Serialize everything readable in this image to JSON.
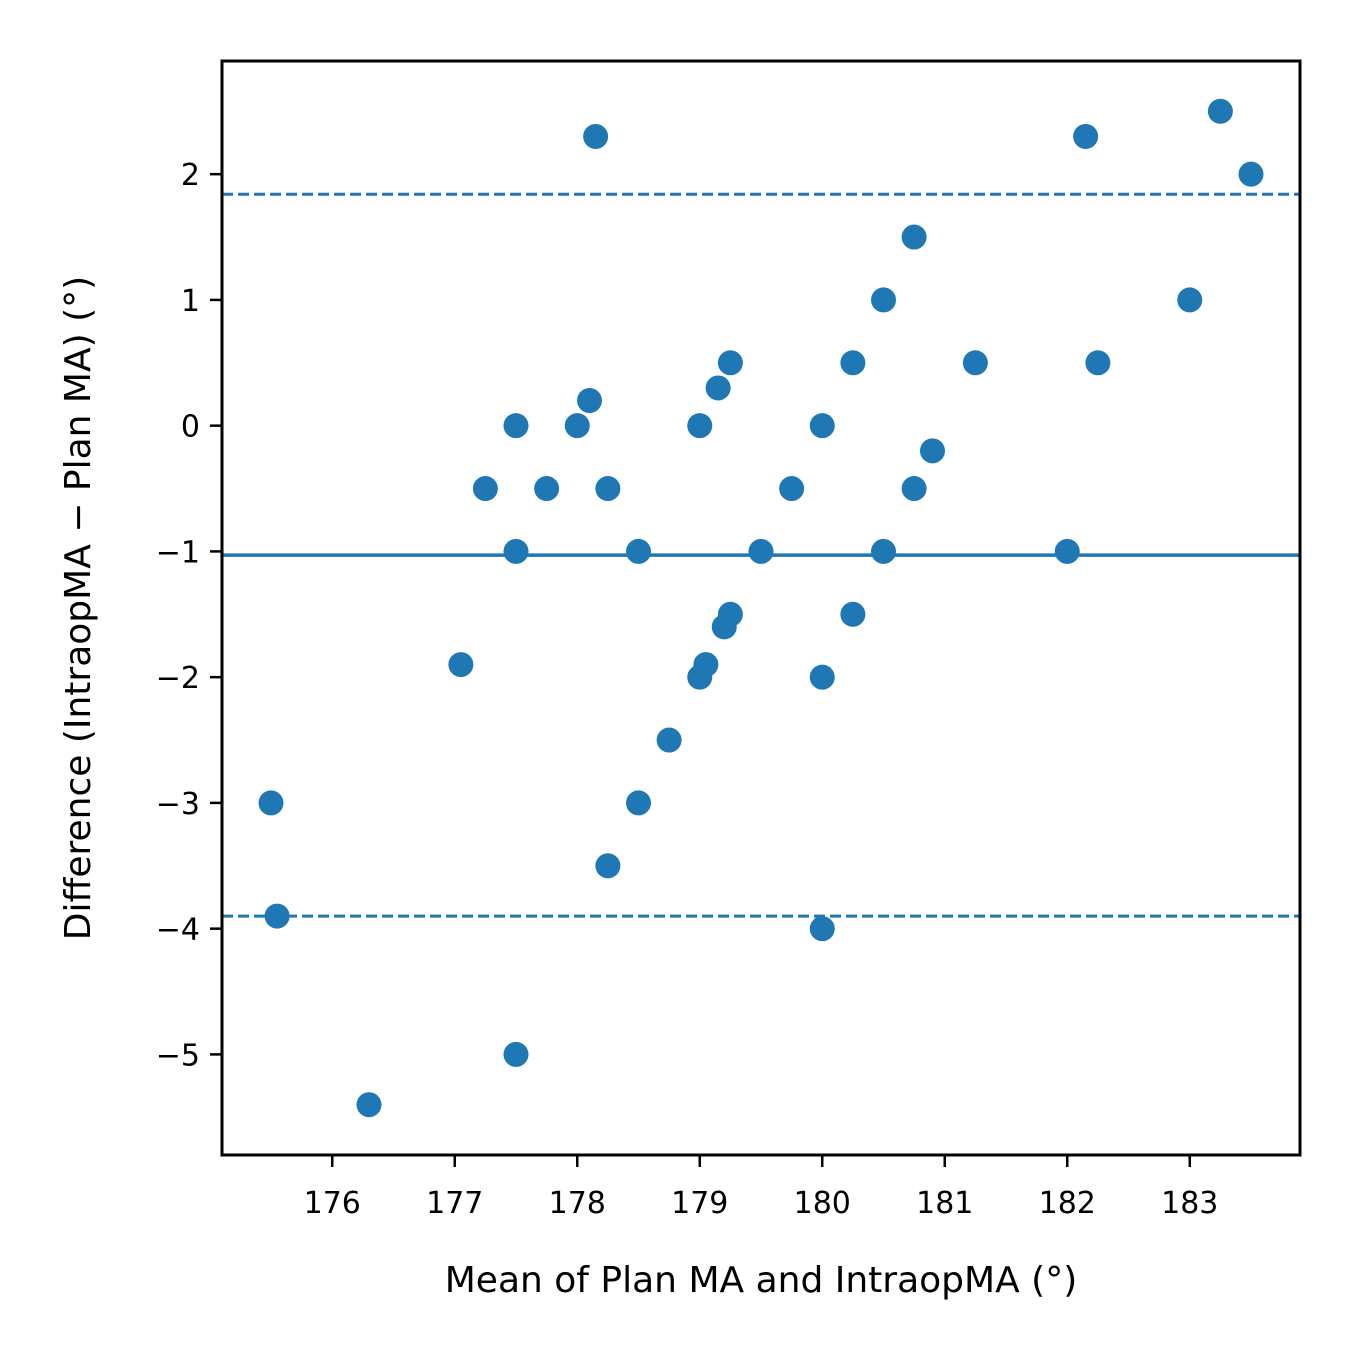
{
  "chart_data": {
    "type": "scatter",
    "xlabel": "Mean of Plan MA and IntraopMA (°)",
    "ylabel": "Difference (IntraopMA − Plan MA) (°)",
    "xlim": [
      175.1,
      183.9
    ],
    "ylim": [
      -5.8,
      2.9
    ],
    "xticks": [
      176,
      177,
      178,
      179,
      180,
      181,
      182,
      183
    ],
    "yticks": [
      -5,
      -4,
      -3,
      -2,
      -1,
      0,
      1,
      2
    ],
    "ytick_labels": [
      "−5",
      "−4",
      "−3",
      "−2",
      "−1",
      "0",
      "1",
      "2"
    ],
    "point_color": "#1f77b4",
    "mean_line": -1.03,
    "upper_limit": 1.84,
    "lower_limit": -3.9,
    "grid": false,
    "points": [
      {
        "x": 175.5,
        "y": -3.0
      },
      {
        "x": 175.55,
        "y": -3.9
      },
      {
        "x": 176.3,
        "y": -5.4
      },
      {
        "x": 177.05,
        "y": -1.9
      },
      {
        "x": 177.25,
        "y": -0.5
      },
      {
        "x": 177.5,
        "y": 0.0
      },
      {
        "x": 177.5,
        "y": -1.0
      },
      {
        "x": 177.5,
        "y": -5.0
      },
      {
        "x": 177.75,
        "y": -0.5
      },
      {
        "x": 178.0,
        "y": 0.0
      },
      {
        "x": 178.1,
        "y": 0.2
      },
      {
        "x": 178.15,
        "y": 2.3
      },
      {
        "x": 178.25,
        "y": -0.5
      },
      {
        "x": 178.25,
        "y": -3.5
      },
      {
        "x": 178.5,
        "y": -1.0
      },
      {
        "x": 178.5,
        "y": -3.0
      },
      {
        "x": 178.75,
        "y": -2.5
      },
      {
        "x": 179.0,
        "y": 0.0
      },
      {
        "x": 179.0,
        "y": -2.0
      },
      {
        "x": 179.05,
        "y": -1.9
      },
      {
        "x": 179.15,
        "y": 0.3
      },
      {
        "x": 179.2,
        "y": -1.6
      },
      {
        "x": 179.25,
        "y": 0.5
      },
      {
        "x": 179.25,
        "y": -1.5
      },
      {
        "x": 179.5,
        "y": -1.0
      },
      {
        "x": 179.75,
        "y": -0.5
      },
      {
        "x": 180.0,
        "y": 0.0
      },
      {
        "x": 180.0,
        "y": -2.0
      },
      {
        "x": 180.0,
        "y": -4.0
      },
      {
        "x": 180.25,
        "y": 0.5
      },
      {
        "x": 180.25,
        "y": -1.5
      },
      {
        "x": 180.5,
        "y": 1.0
      },
      {
        "x": 180.5,
        "y": -1.0
      },
      {
        "x": 180.75,
        "y": 1.5
      },
      {
        "x": 180.75,
        "y": -0.5
      },
      {
        "x": 180.9,
        "y": -0.2
      },
      {
        "x": 181.25,
        "y": 0.5
      },
      {
        "x": 182.0,
        "y": -1.0
      },
      {
        "x": 182.15,
        "y": 2.3
      },
      {
        "x": 182.25,
        "y": 0.5
      },
      {
        "x": 183.0,
        "y": 1.0
      },
      {
        "x": 183.25,
        "y": 2.5
      },
      {
        "x": 183.5,
        "y": 2.0
      }
    ]
  }
}
